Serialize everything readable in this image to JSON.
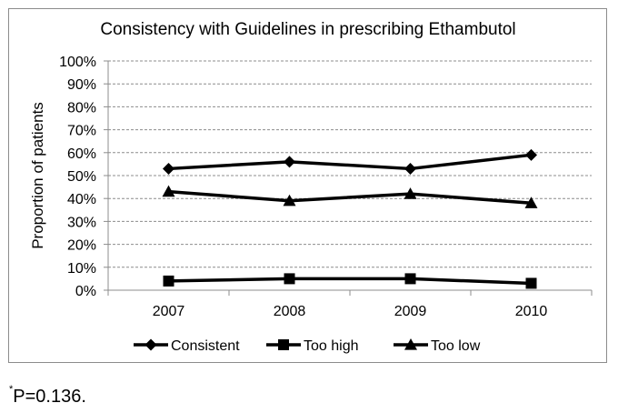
{
  "chart_data": {
    "type": "line",
    "title": "Consistency with Guidelines in prescribing Ethambutol",
    "xlabel": "",
    "ylabel": "Proportion of patients",
    "categories": [
      "2007",
      "2008",
      "2009",
      "2010"
    ],
    "ylim": [
      0,
      100
    ],
    "y_ticks": [
      "0%",
      "10%",
      "20%",
      "30%",
      "40%",
      "50%",
      "60%",
      "70%",
      "80%",
      "90%",
      "100%"
    ],
    "grid": true,
    "legend_position": "bottom",
    "series": [
      {
        "name": "Consistent",
        "marker": "diamond",
        "values": [
          53,
          56,
          53,
          59
        ]
      },
      {
        "name": "Too high",
        "marker": "square",
        "values": [
          4,
          5,
          5,
          3
        ]
      },
      {
        "name": "Too low",
        "marker": "triangle",
        "values": [
          43,
          39,
          42,
          38
        ]
      }
    ]
  },
  "footnote": {
    "marker": "*",
    "text": "P=0.136."
  }
}
